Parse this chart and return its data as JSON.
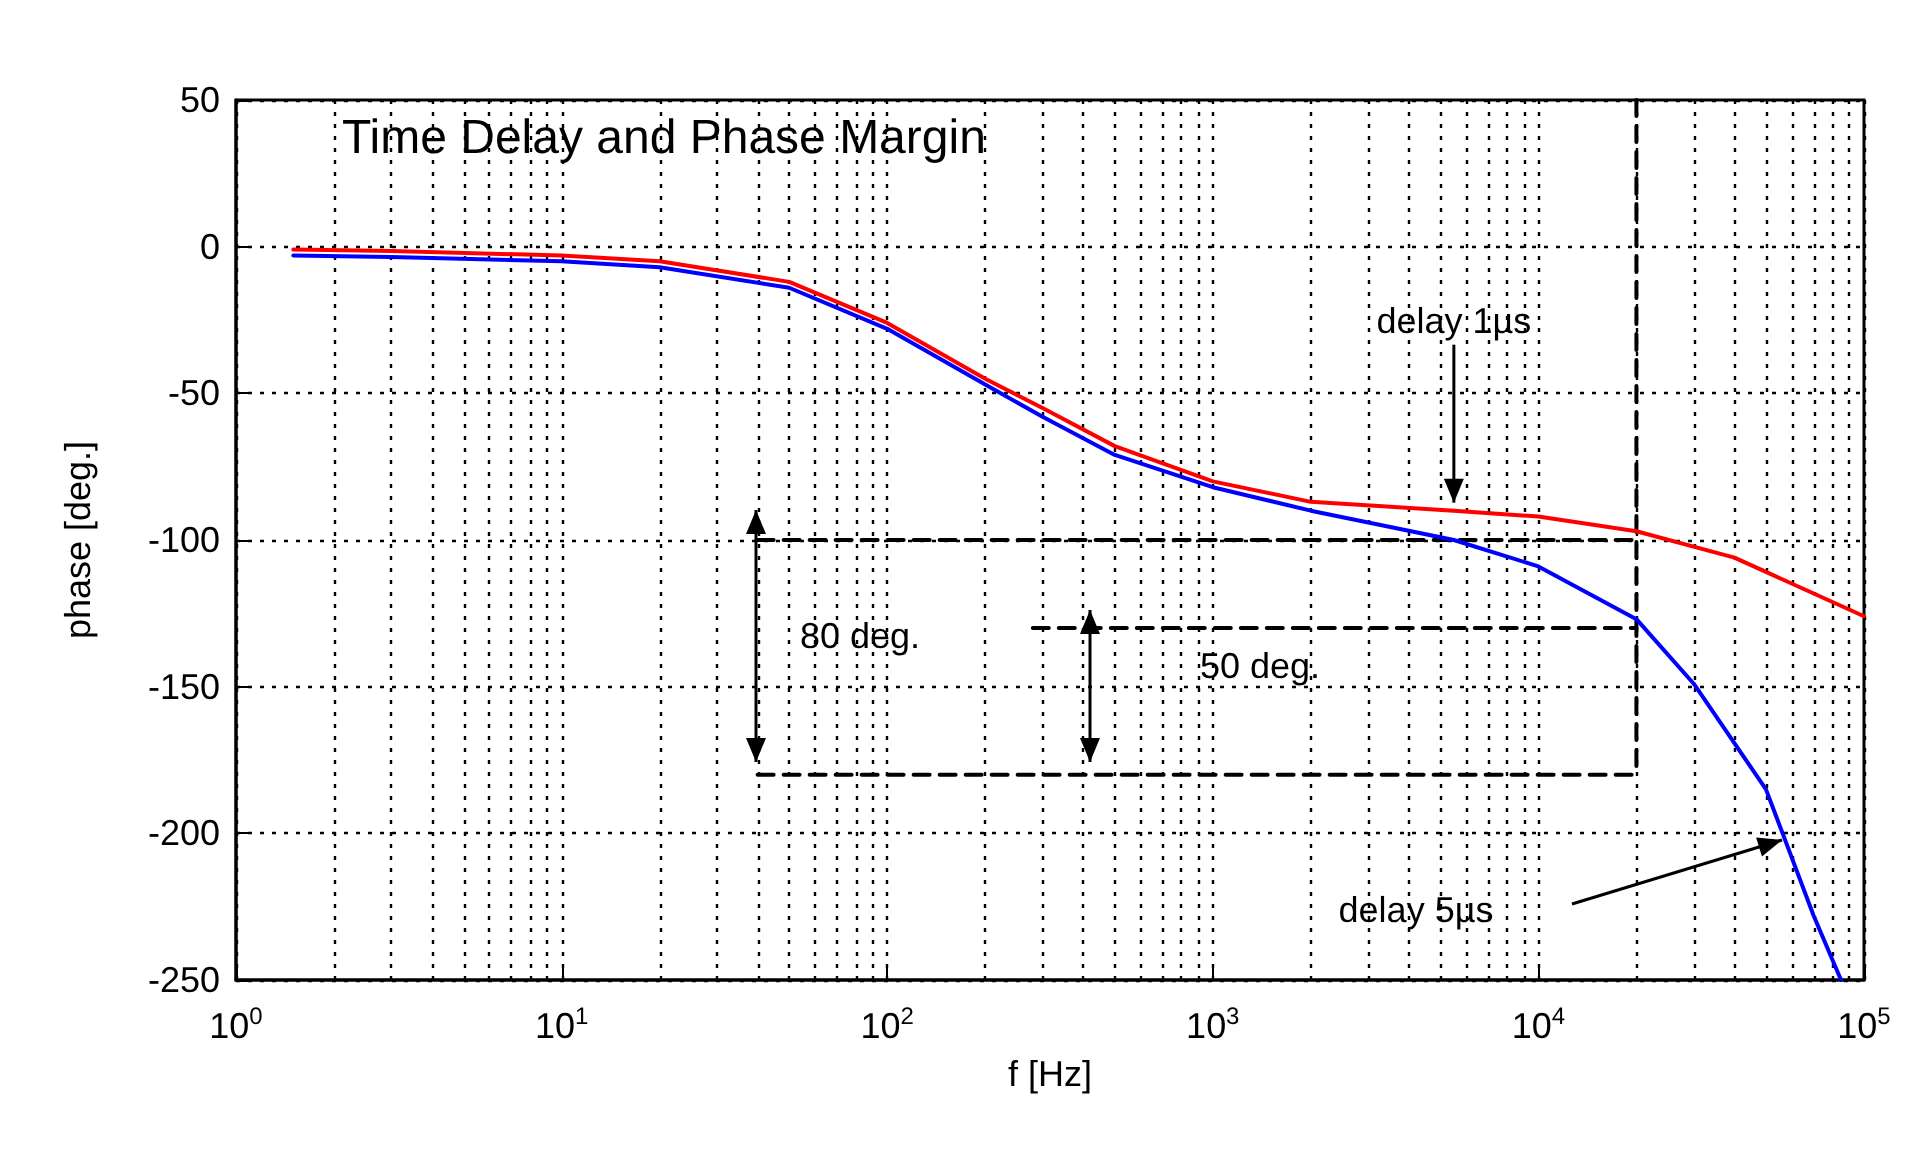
{
  "chart_data": {
    "type": "line",
    "title": "Time Delay and Phase Margin",
    "xlabel": "f [Hz]",
    "ylabel": "phase [deg.]",
    "log": "x",
    "xlim": [
      1,
      100000
    ],
    "xticks": [
      {
        "value": 1,
        "label": "10$^{0}$"
      },
      {
        "value": 10,
        "label": "10$^{1}$"
      },
      {
        "value": 100,
        "label": "10$^{2}$"
      },
      {
        "value": 1000,
        "label": "10$^{3}$"
      },
      {
        "value": 10000,
        "label": "10$^{4}$"
      },
      {
        "value": 100000,
        "label": "10$^{5}$"
      }
    ],
    "ylim": [
      -250,
      50
    ],
    "yticks": [
      -250,
      -200,
      -150,
      -100,
      -50,
      0,
      50
    ],
    "grid": true,
    "line_style": "solid",
    "series": [
      {
        "color": "#ff0000",
        "x": [
          1.5,
          3,
          10,
          20,
          50,
          100,
          200,
          300,
          500,
          1000,
          2000,
          5500,
          10000,
          20000,
          40000,
          100000
        ],
        "values": [
          -1,
          -1.5,
          -3,
          -5,
          -12,
          -26,
          -45,
          -55,
          -68,
          -80,
          -87,
          -90,
          -92,
          -97,
          -106,
          -126
        ]
      },
      {
        "color": "#0000ff",
        "x": [
          1.5,
          3,
          10,
          20,
          50,
          100,
          200,
          300,
          500,
          1000,
          2000,
          5500,
          10000,
          20000,
          30000,
          50000,
          70000,
          85000
        ],
        "values": [
          -3,
          -3.5,
          -5,
          -7,
          -14,
          -28,
          -47,
          -58,
          -71,
          -82,
          -90,
          -100,
          -109,
          -127,
          -149,
          -185,
          -228,
          -250
        ]
      },
      {
        "color": "#000000",
        "line_style": "dashed",
        "x": [
          40,
          20000
        ],
        "values": [
          -100,
          -100
        ]
      },
      {
        "color": "#000000",
        "line_style": "dashed",
        "x": [
          280,
          20000
        ],
        "values": [
          -130,
          -130
        ]
      },
      {
        "color": "#000000",
        "line_style": "dashed",
        "x": [
          40,
          20000
        ],
        "values": [
          -180,
          -180
        ]
      },
      {
        "color": "#000000",
        "line_style": "dashed",
        "x": [
          20000,
          20000
        ],
        "values": [
          50,
          -180
        ]
      }
    ],
    "annotations": [
      {
        "text": "delay 1µs",
        "x": 5500,
        "y": -90
      },
      "80 deg.",
      "50 deg.",
      "delay 5µs"
    ]
  }
}
